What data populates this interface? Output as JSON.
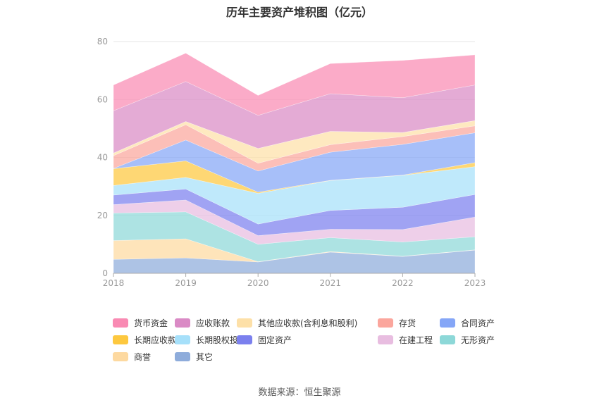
{
  "chart_data": {
    "type": "area",
    "stacked": true,
    "title": "历年主要资产堆积图（亿元）",
    "x": [
      "2018",
      "2019",
      "2020",
      "2021",
      "2022",
      "2023"
    ],
    "ylim": [
      0,
      80
    ],
    "yticks": [
      0,
      20,
      40,
      60,
      80
    ],
    "grid": true,
    "legend_position": "bottom",
    "series": [
      {
        "name": "其它",
        "color": "#8eacdb",
        "values": [
          4.8,
          5.3,
          3.9,
          7.3,
          5.8,
          8.0
        ]
      },
      {
        "name": "商誉",
        "color": "#fdd9a0",
        "values": [
          6.5,
          6.6,
          0.1,
          0.2,
          0.1,
          0.1
        ]
      },
      {
        "name": "无形资产",
        "color": "#8dd8d8",
        "values": [
          9.5,
          9.3,
          6.0,
          4.8,
          4.9,
          4.5
        ]
      },
      {
        "name": "在建工程",
        "color": "#e8bde0",
        "values": [
          2.9,
          4.1,
          3.0,
          2.9,
          4.3,
          6.8
        ]
      },
      {
        "name": "固定资产",
        "color": "#7b80ee",
        "values": [
          3.3,
          3.8,
          4.0,
          6.5,
          7.7,
          7.8
        ]
      },
      {
        "name": "长期股权投资",
        "color": "#a6e0fa",
        "values": [
          3.3,
          4.0,
          10.6,
          10.3,
          11.0,
          9.6
        ]
      },
      {
        "name": "长期应收款",
        "color": "#fdc83f",
        "values": [
          5.8,
          5.7,
          0.4,
          0.1,
          0.1,
          1.4
        ]
      },
      {
        "name": "合同资产",
        "color": "#85a6f7",
        "values": [
          0.1,
          7.2,
          7.3,
          9.7,
          10.6,
          10.3
        ]
      },
      {
        "name": "存货",
        "color": "#fba69d",
        "values": [
          4.4,
          5.3,
          2.7,
          2.6,
          2.7,
          2.4
        ]
      },
      {
        "name": "其他应收款(含利息和股利)",
        "color": "#fde0a8",
        "values": [
          0.9,
          1.1,
          5.1,
          4.6,
          1.4,
          1.8
        ]
      },
      {
        "name": "应收账款",
        "color": "#da8ac5",
        "values": [
          14.6,
          13.8,
          11.4,
          13.0,
          12.0,
          12.3
        ]
      },
      {
        "name": "货币资金",
        "color": "#f98ab3",
        "values": [
          8.9,
          9.8,
          6.9,
          10.4,
          12.9,
          10.4
        ]
      }
    ],
    "legend_order": [
      "货币资金",
      "应收账款",
      "其他应收款(含利息和股利)",
      "存货",
      "合同资产",
      "长期应收款",
      "长期股权投资",
      "固定资产",
      "在建工程",
      "无形资产",
      "商誉",
      "其它"
    ]
  },
  "source_text": "数据来源：恒生聚源"
}
